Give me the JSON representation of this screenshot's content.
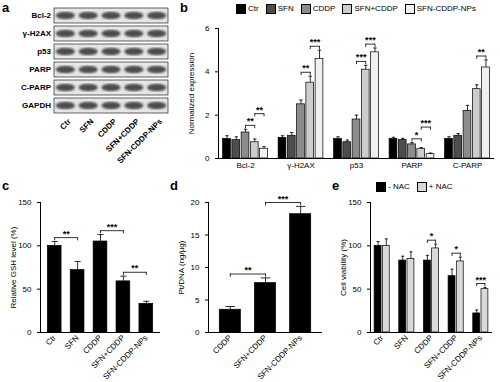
{
  "blot": {
    "title": "a",
    "rows": [
      "Bcl-2",
      "γ-H2AX",
      "p53",
      "PARP",
      "C-PARP",
      "GAPDH"
    ],
    "lanes": [
      "Ctr",
      "SFN",
      "CDDP",
      "SFN+CDDP",
      "SFN-CDDP-NPs"
    ]
  },
  "chart_data": [
    {
      "type": "bar",
      "title": "b",
      "ylabel": "Normalized expression",
      "categories": [
        "Bcl-2",
        "γ-H2AX",
        "p53",
        "PARP",
        "C-PARP"
      ],
      "series": [
        {
          "name": "Ctr",
          "color": "#000000",
          "values": [
            0.9,
            0.95,
            0.9,
            0.9,
            0.9
          ],
          "errors": [
            0.15,
            0.1,
            0.1,
            0.08,
            0.1
          ]
        },
        {
          "name": "SFN",
          "color": "#4d4d4d",
          "values": [
            0.85,
            1.05,
            0.75,
            0.85,
            1.05
          ],
          "errors": [
            0.15,
            0.15,
            0.1,
            0.08,
            0.1
          ]
        },
        {
          "name": "CDDP",
          "color": "#8c8c8c",
          "values": [
            1.2,
            2.5,
            1.8,
            0.65,
            2.2
          ],
          "errors": [
            0.15,
            0.2,
            0.2,
            0.08,
            0.25
          ]
        },
        {
          "name": "SFN+CDDP",
          "color": "#cccccc",
          "values": [
            0.75,
            3.5,
            4.1,
            0.45,
            3.2
          ],
          "errors": [
            0.15,
            0.3,
            0.2,
            0.05,
            0.2
          ]
        },
        {
          "name": "SFN-CDDP-NPs",
          "color": "#f0f0f0",
          "values": [
            0.45,
            4.6,
            4.9,
            0.2,
            4.2
          ],
          "errors": [
            0.1,
            0.4,
            0.2,
            0.05,
            0.35
          ]
        }
      ],
      "ylim": [
        0,
        6
      ],
      "yticks": [
        0,
        2,
        4,
        6
      ],
      "legend": "top",
      "significance": [
        {
          "label": "**",
          "category": "Bcl-2",
          "from": "CDDP",
          "to": "SFN+CDDP"
        },
        {
          "label": "**",
          "category": "Bcl-2",
          "from": "SFN+CDDP",
          "to": "SFN-CDDP-NPs"
        },
        {
          "label": "**",
          "category": "γ-H2AX",
          "from": "CDDP",
          "to": "SFN+CDDP"
        },
        {
          "label": "***",
          "category": "γ-H2AX",
          "from": "SFN+CDDP",
          "to": "SFN-CDDP-NPs"
        },
        {
          "label": "***",
          "category": "p53",
          "from": "CDDP",
          "to": "SFN+CDDP"
        },
        {
          "label": "***",
          "category": "p53",
          "from": "SFN+CDDP",
          "to": "SFN-CDDP-NPs"
        },
        {
          "label": "*",
          "category": "PARP",
          "from": "CDDP",
          "to": "SFN+CDDP"
        },
        {
          "label": "***",
          "category": "PARP",
          "from": "SFN+CDDP",
          "to": "SFN-CDDP-NPs"
        },
        {
          "label": "**",
          "category": "C-PARP",
          "from": "SFN+CDDP",
          "to": "SFN-CDDP-NPs"
        }
      ]
    },
    {
      "type": "bar",
      "title": "c",
      "ylabel": "Relative GSH level (%)",
      "categories": [
        "Ctr",
        "SFN",
        "CDDP",
        "SFN+CDDP",
        "SFN-CDDP-NPs"
      ],
      "values": [
        100,
        72,
        105,
        59,
        33
      ],
      "errors": [
        5,
        10,
        8,
        6,
        3
      ],
      "color": "#000000",
      "ylim": [
        0,
        150
      ],
      "yticks": [
        0,
        50,
        100,
        150
      ],
      "significance": [
        {
          "label": "**",
          "from": "Ctr",
          "to": "SFN"
        },
        {
          "label": "**",
          "from": "SFN+CDDP",
          "to": "SFN-CDDP-NPs"
        },
        {
          "label": "***",
          "from": "CDDP",
          "to": "SFN+CDDP"
        }
      ]
    },
    {
      "type": "bar",
      "title": "d",
      "ylabel": "Pt/DNA (ng/μg)",
      "categories": [
        "CDDP",
        "SFN+CDDP",
        "SFN-CDDP-NPs"
      ],
      "values": [
        3.5,
        7.6,
        18.2
      ],
      "errors": [
        0.5,
        0.8,
        1.2
      ],
      "color": "#000000",
      "ylim": [
        0,
        20
      ],
      "yticks": [
        0,
        5,
        10,
        15,
        20
      ],
      "significance": [
        {
          "label": "**",
          "from": "CDDP",
          "to": "SFN+CDDP"
        },
        {
          "label": "***",
          "from": "SFN+CDDP",
          "to": "SFN-CDDP-NPs"
        }
      ]
    },
    {
      "type": "bar",
      "title": "e",
      "ylabel": "Cell viability (%)",
      "categories": [
        "Ctr",
        "SFN",
        "CDDP",
        "SFN+CDDP",
        "SFN-CDDP-NPs"
      ],
      "series": [
        {
          "name": "- NAC",
          "color": "#000000",
          "values": [
            100,
            83,
            83,
            65,
            22
          ],
          "errors": [
            5,
            5,
            6,
            8,
            4
          ]
        },
        {
          "name": "+ NAC",
          "color": "#d9d9d9",
          "values": [
            100,
            85,
            97,
            82,
            50
          ],
          "errors": [
            8,
            8,
            5,
            5,
            2
          ]
        }
      ],
      "ylim": [
        0,
        150
      ],
      "yticks": [
        0,
        50,
        100,
        150
      ],
      "legend": "top-left",
      "significance": [
        {
          "label": "*",
          "category": "CDDP",
          "from": "- NAC",
          "to": "+ NAC"
        },
        {
          "label": "*",
          "category": "SFN+CDDP",
          "from": "- NAC",
          "to": "+ NAC"
        },
        {
          "label": "***",
          "category": "SFN-CDDP-NPs",
          "from": "- NAC",
          "to": "+ NAC"
        }
      ]
    }
  ]
}
